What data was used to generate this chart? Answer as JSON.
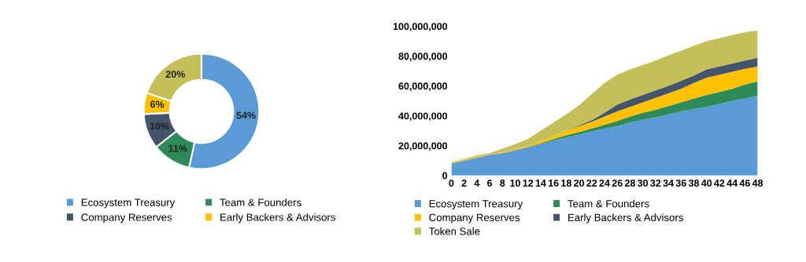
{
  "chart_data": [
    {
      "type": "donut",
      "categories": [
        "Ecosystem Treasury",
        "Team & Founders",
        "Company Reserves",
        "Early Backers & Advisors",
        null
      ],
      "values": [
        54,
        11,
        10,
        6,
        20
      ],
      "value_labels": [
        "54%",
        "11%",
        "10%",
        "6%",
        "20%"
      ],
      "colors": [
        "#5b9bd5",
        "#2e8b57",
        "#44546a",
        "#ffc000",
        "#c5bf5a"
      ],
      "legend": "bottom"
    },
    {
      "type": "area",
      "stacked": true,
      "legend": "bottom",
      "grid": false,
      "x": [
        0,
        2,
        4,
        6,
        8,
        10,
        12,
        14,
        16,
        18,
        20,
        22,
        24,
        26,
        28,
        30,
        32,
        34,
        36,
        38,
        40,
        42,
        44,
        46,
        48
      ],
      "xlim": [
        0,
        48
      ],
      "xticks": [
        0,
        2,
        4,
        6,
        8,
        10,
        12,
        14,
        16,
        18,
        20,
        22,
        24,
        26,
        28,
        30,
        32,
        34,
        36,
        38,
        40,
        42,
        44,
        46,
        48
      ],
      "ylim": [
        0,
        100000000
      ],
      "yticks": [
        {
          "value": 0,
          "label": "0"
        },
        {
          "value": 20000000,
          "label": "20,000,000"
        },
        {
          "value": 40000000,
          "label": "40,000,000"
        },
        {
          "value": 60000000,
          "label": "60,000,000"
        },
        {
          "value": 80000000,
          "label": "80,000,000"
        },
        {
          "value": 100000000,
          "label": "100,000,000"
        }
      ],
      "series": [
        {
          "name": "Ecosystem Treasury",
          "color": "#5b9bd5",
          "values": [
            8000000,
            10000000,
            12000000,
            14000000,
            15000000,
            17000000,
            19000000,
            21000000,
            23500000,
            25500000,
            27500000,
            29500000,
            31500000,
            33000000,
            35500000,
            37500000,
            39000000,
            41000000,
            43000000,
            44500000,
            46000000,
            48000000,
            50000000,
            51500000,
            53500000
          ]
        },
        {
          "name": "Team & Founders",
          "color": "#2e8b57",
          "values": [
            0,
            0,
            0,
            0,
            0,
            0,
            200000,
            500000,
            1000000,
            1500000,
            1500000,
            2000000,
            2500000,
            3500000,
            4000000,
            4500000,
            5000000,
            5500000,
            6000000,
            7000000,
            8000000,
            8000000,
            8000000,
            9500000,
            9500000
          ]
        },
        {
          "name": "Company Reserves",
          "color": "#ffc000",
          "values": [
            500000,
            500000,
            500000,
            200000,
            500000,
            500000,
            800000,
            1500000,
            2000000,
            3000000,
            4000000,
            4500000,
            5500000,
            6500000,
            6500000,
            7000000,
            8000000,
            8500000,
            9000000,
            10500000,
            11500000,
            11500000,
            11500000,
            10500000,
            10000000
          ]
        },
        {
          "name": "Early Backers & Advisors",
          "color": "#44546a",
          "values": [
            0,
            0,
            0,
            0,
            0,
            0,
            0,
            0,
            0,
            0,
            500000,
            1000000,
            2500000,
            4500000,
            5000000,
            5000000,
            5000000,
            5000000,
            5500000,
            5000000,
            5500000,
            5500000,
            5500000,
            5500000,
            6000000
          ]
        },
        {
          "name": "Token Sale",
          "color": "#c5bf5a",
          "values": [
            500000,
            500000,
            1000000,
            800000,
            2500000,
            3500000,
            4500000,
            7000000,
            9000000,
            11000000,
            13500000,
            17500000,
            20000000,
            20000000,
            20000000,
            20000000,
            20000000,
            20500000,
            20000000,
            20000000,
            19000000,
            19000000,
            19000000,
            19000000,
            18000000
          ]
        }
      ]
    }
  ]
}
